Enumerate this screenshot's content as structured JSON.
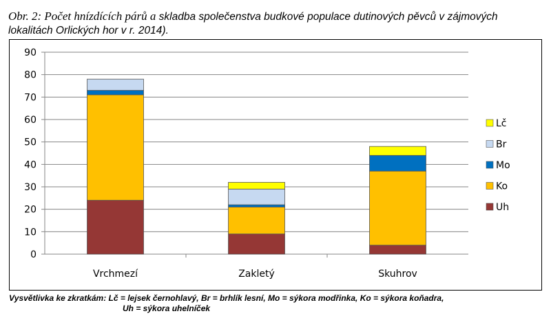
{
  "caption": {
    "lead": "Obr. 2: Počet hnízdících párů a",
    "rest": " skladba společenstva budkové populace dutinových pěvců v zájmových lokalitách Orlických hor v r. 2014)."
  },
  "note": {
    "line1": "Vysvětlivka ke zkratkám: Lč = lejsek černohlavý, Br = brhlík lesní, Mo = sýkora modřinka, Ko = sýkora koňadra,",
    "line2": "Uh = sýkora uhelníček"
  },
  "chart_data": {
    "type": "bar",
    "stacked": true,
    "categories": [
      "Vrchmezí",
      "Zakletý",
      "Skuhrov"
    ],
    "series": [
      {
        "name": "Uh",
        "color": "#953735",
        "values": [
          24,
          9,
          4
        ]
      },
      {
        "name": "Ko",
        "color": "#FFC000",
        "values": [
          47,
          12,
          33
        ]
      },
      {
        "name": "Mo",
        "color": "#0070C0",
        "values": [
          2,
          1,
          7
        ]
      },
      {
        "name": "Br",
        "color": "#C6D9F1",
        "values": [
          5,
          7,
          0
        ]
      },
      {
        "name": "Lč",
        "color": "#FFFF00",
        "values": [
          0,
          3,
          4
        ]
      }
    ],
    "ylim": [
      0,
      90
    ],
    "yticks": [
      0,
      10,
      20,
      30,
      40,
      50,
      60,
      70,
      80,
      90
    ],
    "grid": true,
    "legend_position": "right"
  }
}
